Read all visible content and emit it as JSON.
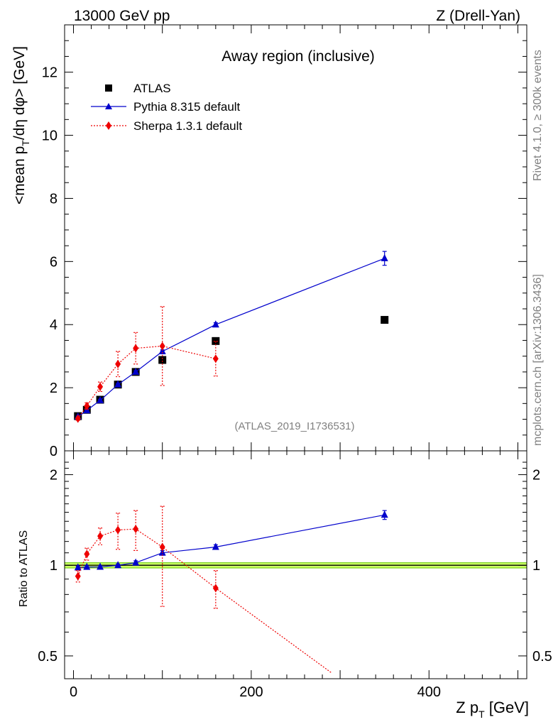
{
  "header": {
    "left": "13000 GeV pp",
    "right": "Z (Drell-Yan)"
  },
  "side": {
    "rivet": "Rivet 4.1.0, ≥ 300k events",
    "mcplots": "mcplots.cern.ch [arXiv:1306.3436]"
  },
  "colors": {
    "atlas": "#000000",
    "pythia": "#0000cc",
    "sherpa": "#ee0000",
    "band_fill": "#ccff66",
    "band_edge": "#66cc00"
  },
  "chart_data": [
    {
      "type": "scatter",
      "panel": "main",
      "title": "Away region (inclusive)",
      "analysis_tag": "(ATLAS_2019_I1736531)",
      "ylabel": "<mean p_T/dη dφ> [GeV]",
      "ylabel_main": "<mean p",
      "ylabel_sub": "T",
      "ylabel_tail": "/dη dφ> [GeV]",
      "xlim": [
        -10,
        510
      ],
      "ylim": [
        0,
        13.5
      ],
      "yticks": [
        0,
        2,
        4,
        6,
        8,
        10,
        12
      ],
      "ytick_labels": [
        "0",
        "2",
        "4",
        "6",
        "8",
        "10",
        "12"
      ],
      "legend": {
        "atlas": "ATLAS",
        "pythia": "Pythia 8.315 default",
        "sherpa": "Sherpa 1.3.1 default"
      },
      "series": [
        {
          "name": "ATLAS",
          "marker": "square",
          "x": [
            5,
            15,
            30,
            50,
            70,
            100,
            160,
            350
          ],
          "y": [
            1.1,
            1.3,
            1.62,
            2.1,
            2.5,
            2.88,
            3.48,
            4.15
          ]
        },
        {
          "name": "Pythia 8.315 default",
          "marker": "triangle",
          "line": "solid",
          "x": [
            5,
            15,
            30,
            50,
            70,
            100,
            160,
            350
          ],
          "y": [
            1.08,
            1.28,
            1.6,
            2.1,
            2.5,
            3.15,
            4.0,
            6.1
          ],
          "err": [
            0.02,
            0.02,
            0.03,
            0.03,
            0.04,
            0.05,
            0.06,
            0.22
          ]
        },
        {
          "name": "Sherpa 1.3.1 default",
          "marker": "diamond",
          "line": "dotted",
          "x": [
            5,
            15,
            30,
            50,
            70,
            100,
            160
          ],
          "y": [
            1.02,
            1.42,
            2.03,
            2.75,
            3.25,
            3.32,
            2.92
          ],
          "err": [
            0.05,
            0.1,
            0.15,
            0.4,
            0.5,
            1.25,
            0.55
          ]
        }
      ]
    },
    {
      "type": "scatter",
      "panel": "ratio",
      "ylabel": "Ratio to ATLAS",
      "xlabel": "Z p_T [GeV]",
      "xlabel_main": "Z p",
      "xlabel_sub": "T",
      "xlabel_tail": " [GeV]",
      "xlim": [
        -10,
        510
      ],
      "ylim": [
        0.42,
        2.4
      ],
      "yscale": "log",
      "xticks": [
        0,
        200,
        400
      ],
      "xtick_labels": [
        "0",
        "200",
        "400"
      ],
      "yticks": [
        0.5,
        1,
        2
      ],
      "ytick_labels": [
        "0.5",
        "1",
        "2"
      ],
      "band": [
        0.98,
        1.02
      ],
      "series": [
        {
          "name": "Pythia 8.315 default",
          "marker": "triangle",
          "line": "solid",
          "x": [
            5,
            15,
            30,
            50,
            70,
            100,
            160,
            350
          ],
          "y": [
            0.983,
            0.987,
            0.988,
            1.0,
            1.02,
            1.1,
            1.15,
            1.47
          ],
          "err": [
            0.01,
            0.01,
            0.01,
            0.01,
            0.015,
            0.02,
            0.02,
            0.05
          ]
        },
        {
          "name": "Sherpa 1.3.1 default",
          "marker": "diamond",
          "line": "dotted",
          "x": [
            5,
            15,
            30,
            50,
            70,
            100,
            160,
            290
          ],
          "y": [
            0.92,
            1.09,
            1.25,
            1.31,
            1.32,
            1.15,
            0.84,
            0.44
          ],
          "err": [
            0.04,
            0.05,
            0.08,
            0.18,
            0.2,
            0.42,
            0.12,
            0
          ],
          "show_marker": [
            true,
            true,
            true,
            true,
            true,
            true,
            true,
            false
          ]
        }
      ]
    }
  ]
}
